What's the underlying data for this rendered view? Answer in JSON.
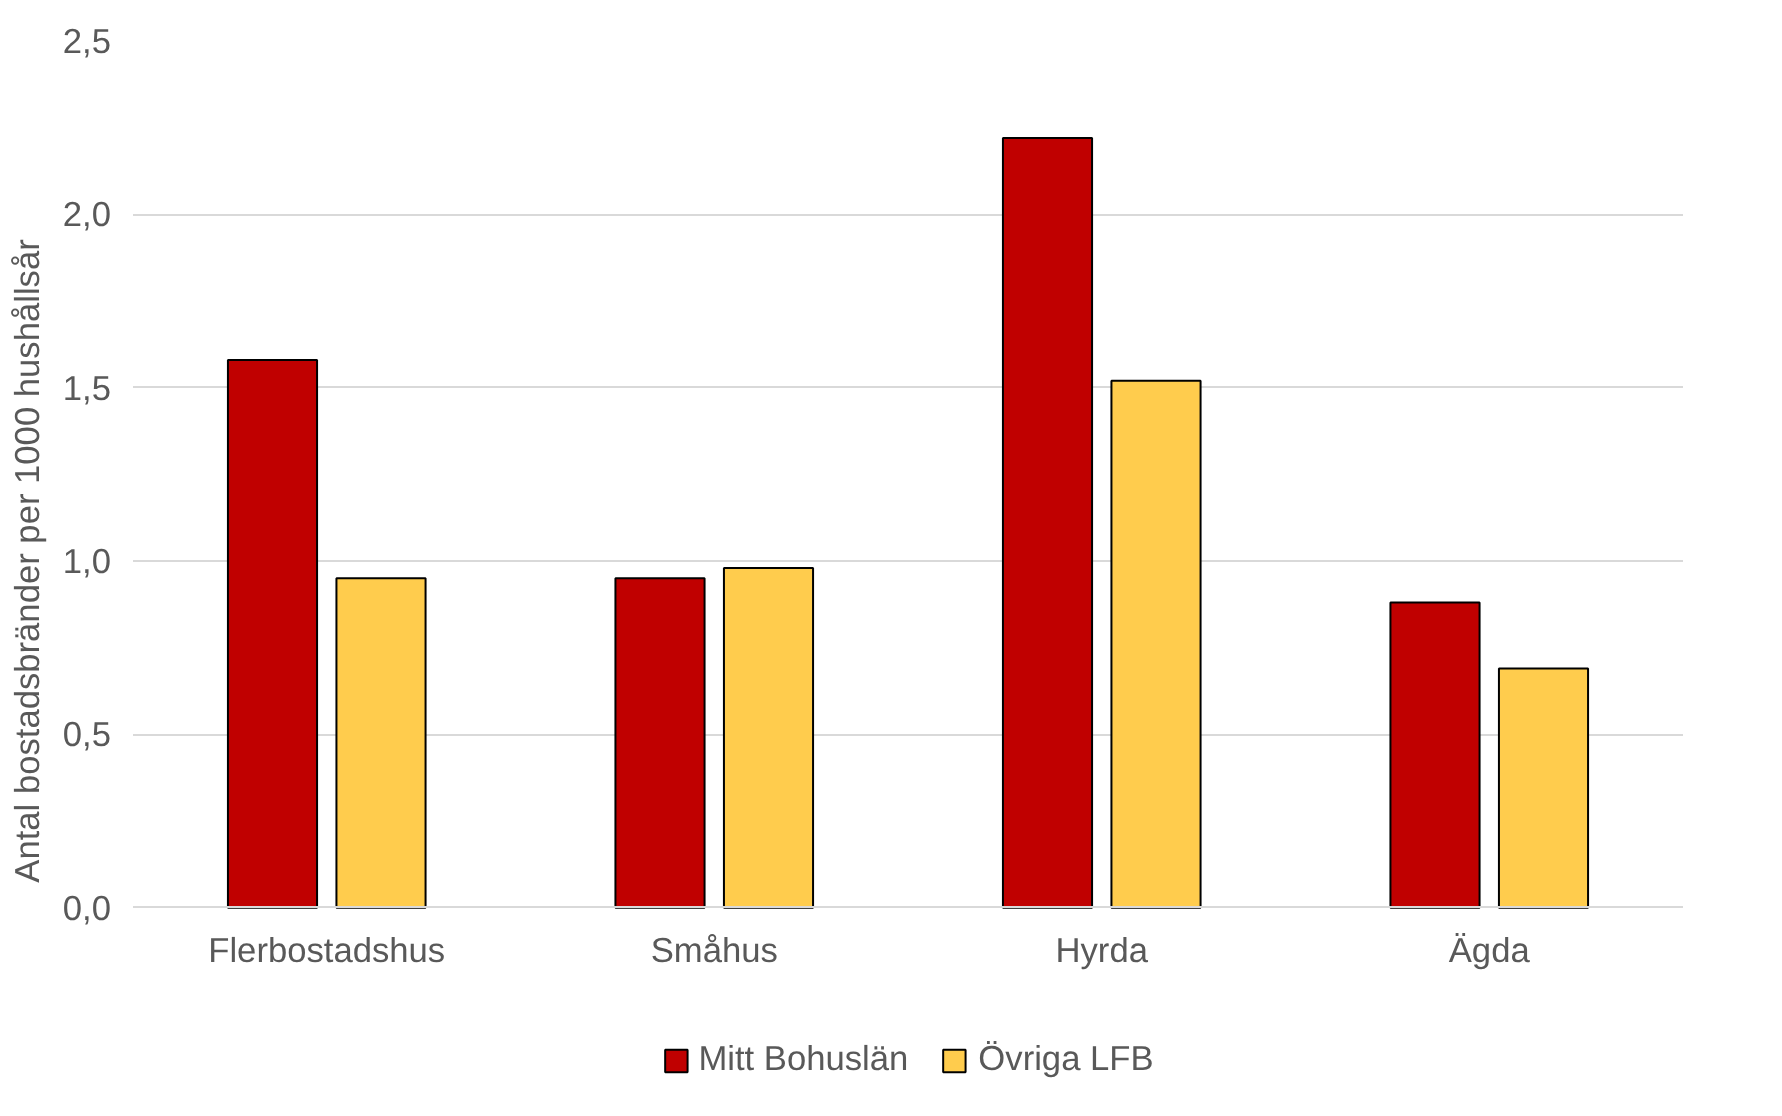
{
  "chart_data": {
    "type": "bar",
    "ylabel": "Antal bostadsbränder per 1000 hushållsår",
    "categories": [
      "Flerbostadshus",
      "Småhus",
      "Hyrda",
      "Ägda"
    ],
    "series": [
      {
        "name": "Mitt Bohuslän",
        "color": "#c00000",
        "values": [
          1.58,
          0.95,
          2.22,
          0.88
        ]
      },
      {
        "name": "Övriga LFB",
        "color": "#ffcc4d",
        "values": [
          0.95,
          0.98,
          1.52,
          0.69
        ]
      }
    ],
    "ylim": [
      0,
      2.5
    ],
    "yticks": [
      {
        "value": 0,
        "label": "0,0"
      },
      {
        "value": 0.5,
        "label": "0,5"
      },
      {
        "value": 1,
        "label": "1,0"
      },
      {
        "value": 1.5,
        "label": "1,5"
      },
      {
        "value": 2,
        "label": "2,0"
      },
      {
        "value": 2.5,
        "label": "2,5"
      }
    ],
    "grid": "y",
    "legend": "bottom"
  }
}
